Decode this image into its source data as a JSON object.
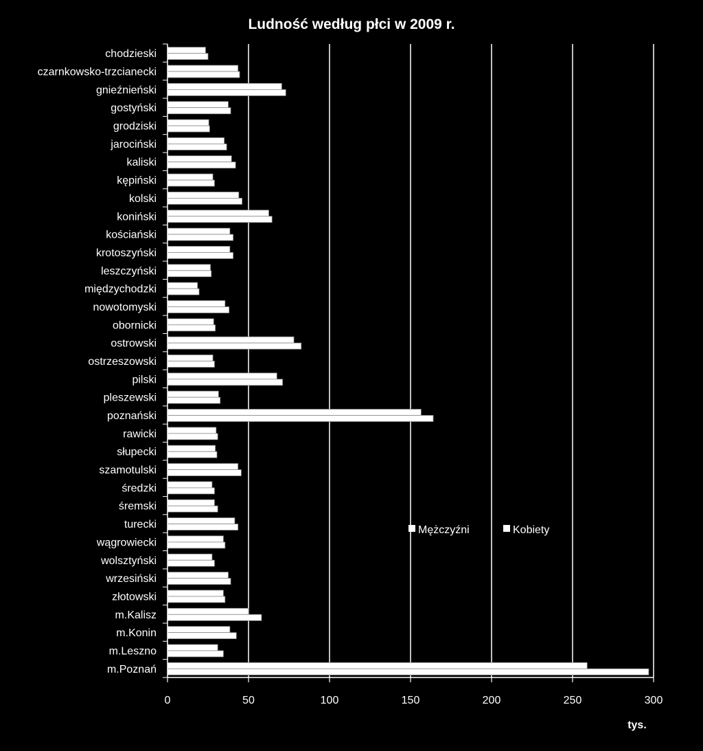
{
  "chart_data": {
    "type": "bar",
    "orientation": "horizontal",
    "title": "Ludność według płci w 2009 r.",
    "xlabel": "tys.",
    "ylabel": "",
    "xlim": [
      0,
      300
    ],
    "xticks": [
      "0",
      "50",
      "100",
      "150",
      "200",
      "250",
      "300"
    ],
    "grid": true,
    "legend_position": "right",
    "background_color": "#000000",
    "bar_color": "#ffffff",
    "categories": [
      "chodzieski",
      "czarnkowsko-trzcianecki",
      "gnieźnieński",
      "gostyński",
      "grodziski",
      "jarociński",
      "kaliski",
      "kępiński",
      "kolski",
      "koniński",
      "kościański",
      "krotoszyński",
      "leszczyński",
      "międzychodzki",
      "nowotomyski",
      "obornicki",
      "ostrowski",
      "ostrzeszowski",
      "pilski",
      "pleszewski",
      "poznański",
      "rawicki",
      "słupecki",
      "szamotulski",
      "średzki",
      "śremski",
      "turecki",
      "wągrowiecki",
      "wolsztyński",
      "wrzesiński",
      "złotowski",
      "m.Kalisz",
      "m.Konin",
      "m.Leszno",
      "m.Poznań"
    ],
    "series": [
      {
        "name": "Mężczyźni",
        "values": [
          23.5,
          43.5,
          70.5,
          37.5,
          25.5,
          35,
          39.5,
          28,
          44,
          62.5,
          38.5,
          38.5,
          26.5,
          18.5,
          35.5,
          28.5,
          78,
          28,
          67.5,
          31.5,
          156.5,
          30,
          29.5,
          43.5,
          27.5,
          29,
          41.5,
          34.5,
          27.5,
          37.5,
          34.5,
          50,
          38.5,
          31,
          259
        ]
      },
      {
        "name": "Kobiety",
        "values": [
          25,
          44.5,
          73,
          39,
          26,
          36.5,
          42,
          29,
          46,
          64.5,
          40.5,
          40.5,
          27,
          19.5,
          38,
          29.5,
          82.5,
          29,
          71,
          32.5,
          164,
          31,
          30.5,
          45.5,
          29,
          31,
          43.5,
          35.5,
          29,
          39,
          35.5,
          58,
          42.5,
          34.5,
          297
        ]
      }
    ]
  }
}
